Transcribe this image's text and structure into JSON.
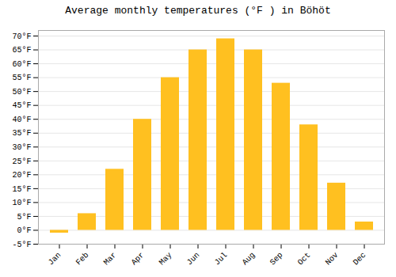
{
  "chart_data": {
    "type": "bar",
    "title": "Average monthly temperatures (°F ) in Böhöt",
    "categories": [
      "Jan",
      "Feb",
      "Mar",
      "Apr",
      "May",
      "Jun",
      "Jul",
      "Aug",
      "Sep",
      "Oct",
      "Nov",
      "Dec"
    ],
    "values": [
      -1,
      6,
      22,
      40,
      55,
      65,
      69,
      65,
      53,
      38,
      17,
      3
    ],
    "color": "#FFC020",
    "ylim": [
      -5,
      72
    ],
    "yticks": [
      {
        "value": -5,
        "label": "-5°F"
      },
      {
        "value": 0,
        "label": "0°F"
      },
      {
        "value": 5,
        "label": "5°F"
      },
      {
        "value": 10,
        "label": "10°F"
      },
      {
        "value": 15,
        "label": "15°F"
      },
      {
        "value": 20,
        "label": "20°F"
      },
      {
        "value": 25,
        "label": "25°F"
      },
      {
        "value": 30,
        "label": "30°F"
      },
      {
        "value": 35,
        "label": "35°F"
      },
      {
        "value": 40,
        "label": "40°F"
      },
      {
        "value": 45,
        "label": "45°F"
      },
      {
        "value": 50,
        "label": "50°F"
      },
      {
        "value": 55,
        "label": "55°F"
      },
      {
        "value": 60,
        "label": "60°F"
      },
      {
        "value": 65,
        "label": "65°F"
      },
      {
        "value": 70,
        "label": "70°F"
      }
    ],
    "grid": true
  }
}
